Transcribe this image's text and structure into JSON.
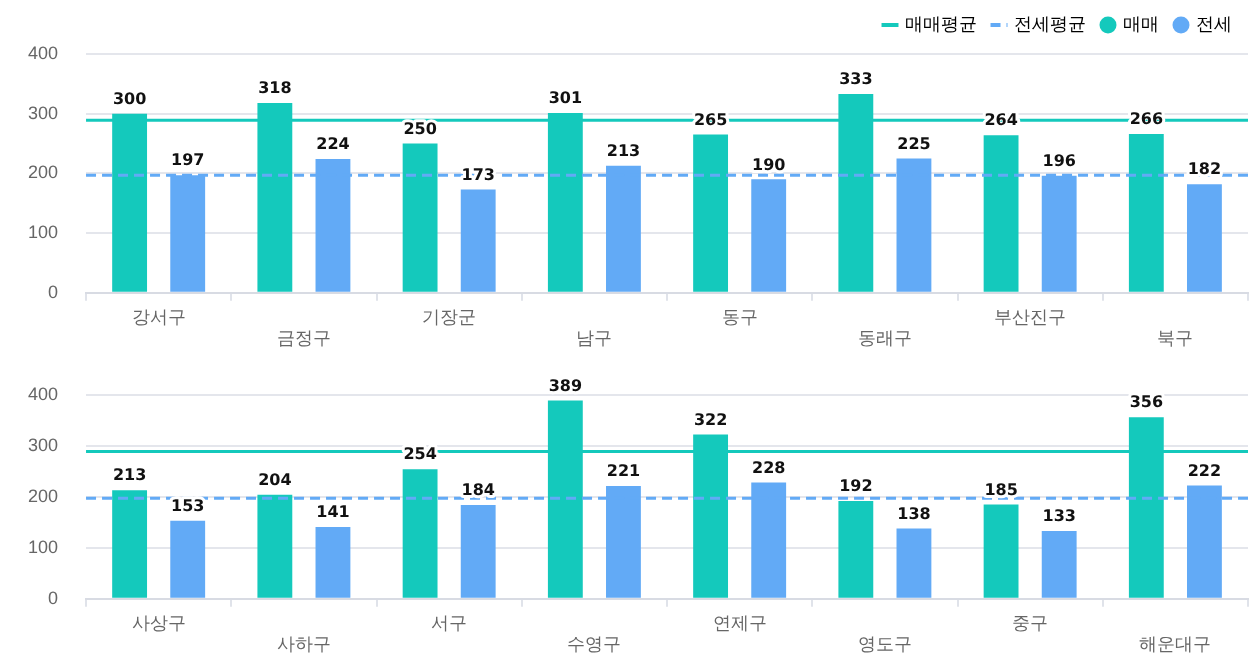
{
  "chart_data": [
    {
      "type": "bar",
      "categories": [
        "강서구",
        "금정구",
        "기장군",
        "남구",
        "동구",
        "동래구",
        "부산진구",
        "북구"
      ],
      "series": [
        {
          "name": "매매",
          "color": "#14c9bc",
          "values": [
            300,
            318,
            250,
            301,
            265,
            333,
            264,
            266
          ]
        },
        {
          "name": "전세",
          "color": "#62aaf6",
          "values": [
            197,
            224,
            173,
            213,
            190,
            225,
            196,
            182
          ]
        }
      ],
      "ylim": [
        0,
        400
      ],
      "yticks": [
        0,
        100,
        200,
        300,
        400
      ],
      "grid": "y",
      "legend": "top right",
      "data_labels": true,
      "ref_lines": [
        {
          "axis": "y",
          "value": 289,
          "label": "매매평균",
          "color": "#14c9bc",
          "line_style": "solid"
        },
        {
          "axis": "y",
          "value": 197,
          "label": "전세평균",
          "color": "#62aaf6",
          "line_style": "dashed"
        }
      ]
    },
    {
      "type": "bar",
      "categories": [
        "사상구",
        "사하구",
        "서구",
        "수영구",
        "연제구",
        "영도구",
        "중구",
        "해운대구"
      ],
      "series": [
        {
          "color": "#14c9bc",
          "values": [
            213,
            204,
            254,
            389,
            322,
            192,
            185,
            356
          ]
        },
        {
          "color": "#62aaf6",
          "values": [
            153,
            141,
            184,
            221,
            228,
            138,
            133,
            222
          ]
        }
      ],
      "ylim": [
        0,
        400
      ],
      "yticks": [
        0,
        100,
        200,
        300,
        400
      ],
      "grid": "y",
      "legend": false,
      "data_labels": true,
      "ref_lines": [
        {
          "axis": "y",
          "value": 289,
          "color": "#14c9bc",
          "line_style": "solid"
        },
        {
          "axis": "y",
          "value": 197,
          "color": "#62aaf6",
          "line_style": "dashed"
        }
      ]
    }
  ]
}
